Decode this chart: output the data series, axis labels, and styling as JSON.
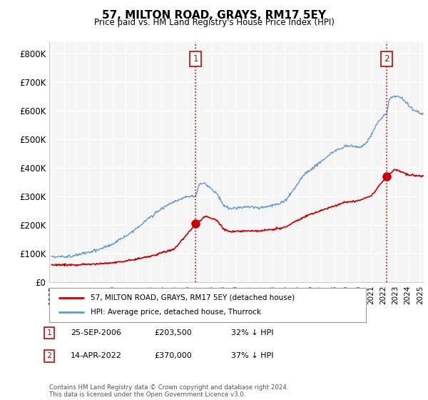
{
  "title": "57, MILTON ROAD, GRAYS, RM17 5EY",
  "subtitle": "Price paid vs. HM Land Registry's House Price Index (HPI)",
  "ylabel_ticks": [
    "£0",
    "£100K",
    "£200K",
    "£300K",
    "£400K",
    "£500K",
    "£600K",
    "£700K",
    "£800K"
  ],
  "ytick_values": [
    0,
    100000,
    200000,
    300000,
    400000,
    500000,
    600000,
    700000,
    800000
  ],
  "ylim": [
    0,
    840000
  ],
  "xlim_start": 1994.8,
  "xlim_end": 2025.3,
  "legend_label_red": "57, MILTON ROAD, GRAYS, RM17 5EY (detached house)",
  "legend_label_blue": "HPI: Average price, detached house, Thurrock",
  "sale1_date": "25-SEP-2006",
  "sale1_price": "£203,500",
  "sale1_hpi": "32% ↓ HPI",
  "sale2_date": "14-APR-2022",
  "sale2_price": "£370,000",
  "sale2_hpi": "37% ↓ HPI",
  "footer": "Contains HM Land Registry data © Crown copyright and database right 2024.\nThis data is licensed under the Open Government Licence v3.0.",
  "sale1_x": 2006.73,
  "sale1_y": 203500,
  "sale2_x": 2022.29,
  "sale2_y": 370000,
  "red_color": "#cc0000",
  "blue_color": "#6699cc",
  "background_color": "#ffffff",
  "plot_bg_color": "#f5f5f5"
}
